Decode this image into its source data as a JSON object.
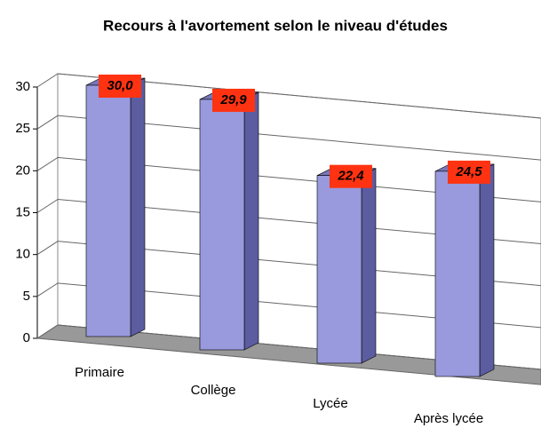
{
  "chart_data": {
    "type": "bar",
    "title": "Recours à l'avortement selon le niveau d'études",
    "categories": [
      "Primaire",
      "Collège",
      "Lycée",
      "Après lycée"
    ],
    "values": [
      30.0,
      29.9,
      22.4,
      24.5
    ],
    "value_labels": [
      "30,0",
      "29,9",
      "22,4",
      "24,5"
    ],
    "color": "#9999dd",
    "ylim": [
      0,
      30
    ],
    "yticks": [
      0,
      5,
      10,
      15,
      20,
      25,
      30
    ],
    "grid": true
  }
}
